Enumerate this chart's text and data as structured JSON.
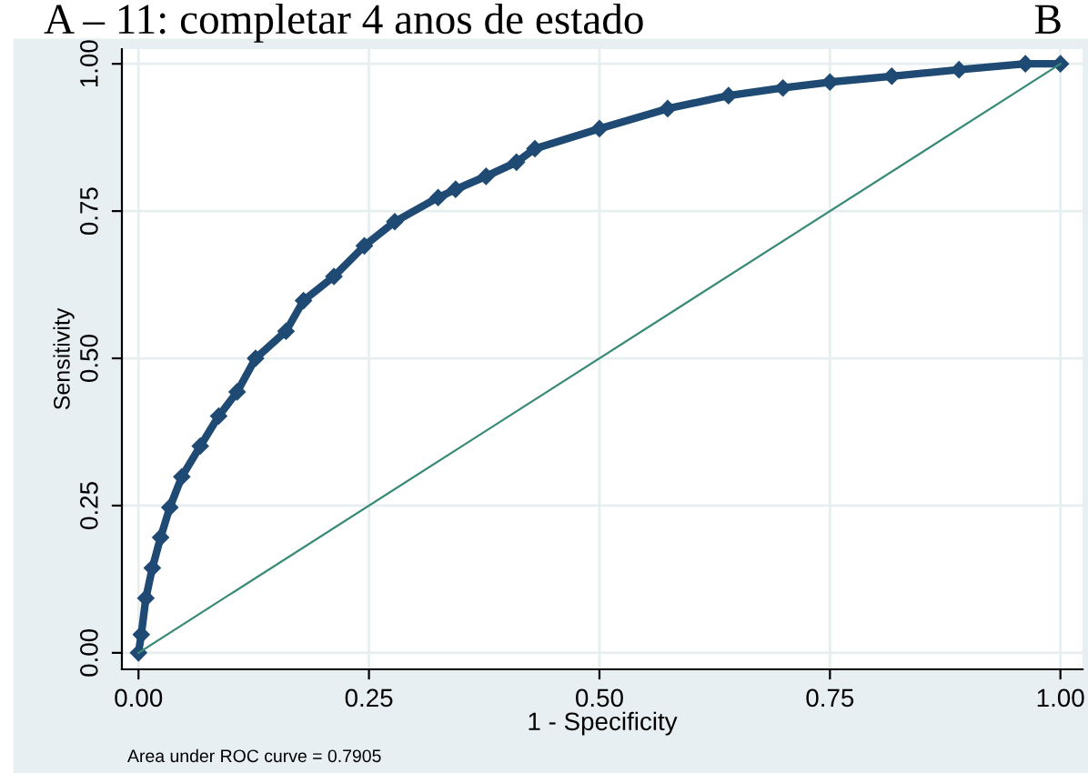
{
  "chart_data": {
    "type": "line",
    "title": "A – 11: completar 4 anos de estado",
    "xlabel": "1 - Specificity",
    "ylabel": "Sensitivity",
    "annotations": [
      "B",
      "Area under ROC curve = 0.7905"
    ],
    "series": [
      {
        "marker": "diamond",
        "color": "#1f4a73",
        "x": [
          0,
          0.003,
          0.008,
          0.015,
          0.024,
          0.034,
          0.047,
          0.067,
          0.087,
          0.107,
          0.127,
          0.16,
          0.179,
          0.212,
          0.245,
          0.278,
          0.325,
          0.344,
          0.377,
          0.41,
          0.43,
          0.5,
          0.574,
          0.64,
          0.699,
          0.75,
          0.817,
          0.89,
          0.962,
          1.0
        ],
        "values": [
          0,
          0.031,
          0.093,
          0.144,
          0.196,
          0.247,
          0.299,
          0.351,
          0.402,
          0.443,
          0.5,
          0.546,
          0.598,
          0.639,
          0.691,
          0.732,
          0.773,
          0.787,
          0.809,
          0.833,
          0.856,
          0.89,
          0.924,
          0.946,
          0.959,
          0.969,
          0.979,
          0.99,
          1.0,
          1.0
        ]
      },
      {
        "marker": "none",
        "color": "#3a8a78",
        "x": [
          0,
          1
        ],
        "values": [
          0,
          1
        ]
      }
    ],
    "xlim": [
      -0.018,
      1.024
    ],
    "ylim": [
      -0.028,
      1.025
    ],
    "xticks": [
      {
        "value": 0,
        "label": "0.00"
      },
      {
        "value": 0.25,
        "label": "0.25"
      },
      {
        "value": 0.5,
        "label": "0.50"
      },
      {
        "value": 0.75,
        "label": "0.75"
      },
      {
        "value": 1,
        "label": "1.00"
      }
    ],
    "yticks": [
      {
        "value": 0,
        "label": "0.00"
      },
      {
        "value": 0.25,
        "label": "0.25"
      },
      {
        "value": 0.5,
        "label": "0.50"
      },
      {
        "value": 0.75,
        "label": "0.75"
      },
      {
        "value": 1,
        "label": "1.00"
      }
    ],
    "grid": true
  }
}
